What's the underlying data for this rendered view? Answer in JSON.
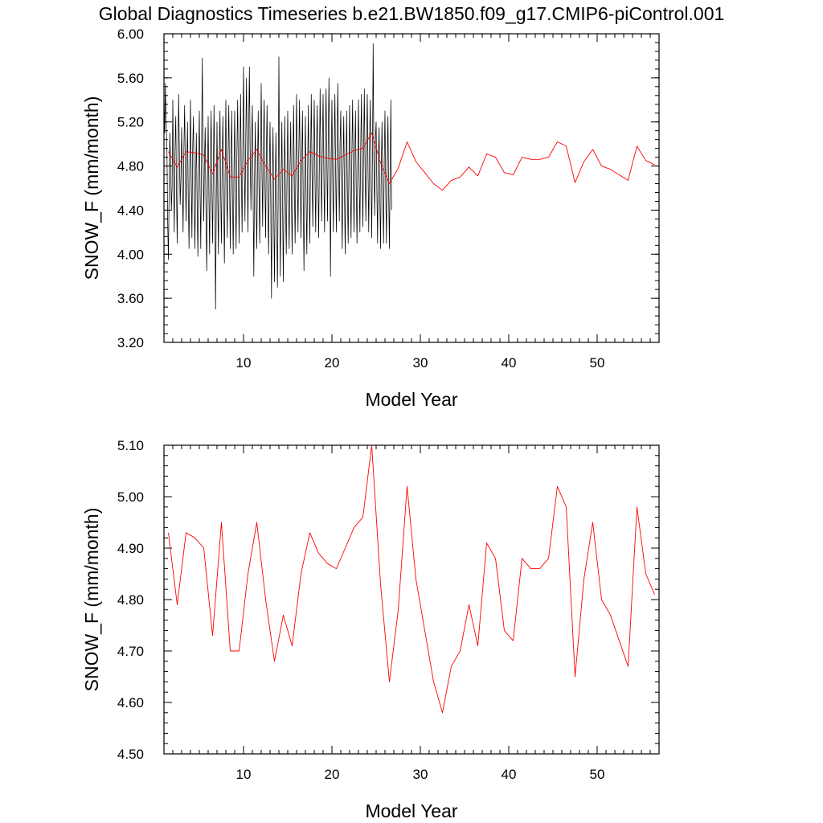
{
  "title": "Global Diagnostics Timeseries b.e21.BW1850.f09_g17.CMIP6-piControl.001",
  "colors": {
    "monthly": "#000000",
    "annual": "#ff0000",
    "axis": "#000000"
  },
  "chart_data": [
    {
      "type": "line",
      "name": "monthly-and-annual",
      "xlabel": "Model Year",
      "ylabel": "SNOW_F (mm/month)",
      "xlim": [
        1,
        57
      ],
      "ylim": [
        3.2,
        6.0
      ],
      "xticks": [
        10,
        20,
        30,
        40,
        50
      ],
      "xtick_labels": [
        "10",
        "20",
        "30",
        "40",
        "50"
      ],
      "yticks": [
        3.2,
        3.6,
        4.0,
        4.4,
        4.8,
        5.2,
        5.6,
        6.0
      ],
      "ytick_labels": [
        "3.20",
        "3.60",
        "4.00",
        "4.40",
        "4.80",
        "5.20",
        "5.60",
        "6.00"
      ],
      "series": [
        {
          "name": "monthly",
          "color": "#000000",
          "x_start": 1.0,
          "x_step": 0.08333,
          "values": [
            5.45,
            5.1,
            5.55,
            5.2,
            4.95,
            4.3,
            3.95,
            4.55,
            5.1,
            4.85,
            4.4,
            4.6,
            5.4,
            4.75,
            4.2,
            4.95,
            5.25,
            4.55,
            4.1,
            4.85,
            5.45,
            4.9,
            4.45,
            4.7,
            5.15,
            4.65,
            4.2,
            4.9,
            5.35,
            4.8,
            4.3,
            4.75,
            5.2,
            4.55,
            4.05,
            4.8,
            5.4,
            4.7,
            4.15,
            4.95,
            5.25,
            4.55,
            4.05,
            4.65,
            5.1,
            4.5,
            3.98,
            4.7,
            5.3,
            4.6,
            4.05,
            4.85,
            5.78,
            4.9,
            4.3,
            4.85,
            5.15,
            4.45,
            3.85,
            4.6,
            5.25,
            4.55,
            4.0,
            4.8,
            5.3,
            4.6,
            4.1,
            4.75,
            5.35,
            4.65,
            3.5,
            4.45,
            5.2,
            4.5,
            4.0,
            4.85,
            5.3,
            4.55,
            4.1,
            4.8,
            5.25,
            4.6,
            3.92,
            4.7,
            5.4,
            4.7,
            4.15,
            4.9,
            5.35,
            4.65,
            4.05,
            4.8,
            5.3,
            4.55,
            4.0,
            4.75,
            5.3,
            4.6,
            4.05,
            4.9,
            5.4,
            4.7,
            4.1,
            4.85,
            5.45,
            4.75,
            4.2,
            4.95,
            5.7,
            4.9,
            4.3,
            5.0,
            5.6,
            4.85,
            4.2,
            5.1,
            5.7,
            4.95,
            4.4,
            5.05,
            5.35,
            4.55,
            3.8,
            4.7,
            5.2,
            4.45,
            4.05,
            4.8,
            5.3,
            4.6,
            4.1,
            4.85,
            5.55,
            4.8,
            4.25,
            5.0,
            5.4,
            4.65,
            4.15,
            4.9,
            5.35,
            4.5,
            4.0,
            4.75,
            5.2,
            4.45,
            3.6,
            4.6,
            5.15,
            4.4,
            3.75,
            4.55,
            5.1,
            4.35,
            3.7,
            4.5,
            5.79,
            4.65,
            3.8,
            4.6,
            5.2,
            4.45,
            3.75,
            4.55,
            5.25,
            4.5,
            4.0,
            4.7,
            5.3,
            4.6,
            4.05,
            4.75,
            5.2,
            4.5,
            4.0,
            4.8,
            5.35,
            4.65,
            4.1,
            4.85,
            5.45,
            4.75,
            4.2,
            4.9,
            5.4,
            4.7,
            4.15,
            4.8,
            5.3,
            4.55,
            3.85,
            4.7,
            5.25,
            4.5,
            4.0,
            4.75,
            5.35,
            4.6,
            4.1,
            4.85,
            5.45,
            4.75,
            4.25,
            4.95,
            5.4,
            4.7,
            4.2,
            4.9,
            5.35,
            4.65,
            4.15,
            4.85,
            5.5,
            4.8,
            4.3,
            5.0,
            5.45,
            4.75,
            4.2,
            4.95,
            5.5,
            4.85,
            4.3,
            5.05,
            5.6,
            4.9,
            3.8,
            4.85,
            5.4,
            4.7,
            4.2,
            4.9,
            5.45,
            4.75,
            4.2,
            4.95,
            5.55,
            4.85,
            4.3,
            5.0,
            5.3,
            4.6,
            4.05,
            4.75,
            5.25,
            4.55,
            4.0,
            4.7,
            5.3,
            4.6,
            4.1,
            4.8,
            5.35,
            4.65,
            4.15,
            4.85,
            5.4,
            4.7,
            4.2,
            4.9,
            5.3,
            4.6,
            4.1,
            4.8,
            5.4,
            4.7,
            4.2,
            4.9,
            5.45,
            4.75,
            4.25,
            4.95,
            5.5,
            4.8,
            4.3,
            5.0,
            5.45,
            4.75,
            4.2,
            4.95,
            5.4,
            4.7,
            4.15,
            4.9,
            5.91,
            4.85,
            4.35,
            5.05,
            5.2,
            4.6,
            4.1,
            4.85,
            5.15,
            4.5,
            4.05,
            4.8,
            5.2,
            4.55,
            4.1,
            4.85,
            5.3,
            4.6,
            4.1,
            4.8,
            5.25,
            4.55,
            4.05,
            4.75,
            5.4,
            4.4
          ]
        },
        {
          "name": "annual",
          "color": "#ff0000",
          "x": [
            1.5,
            2.5,
            3.5,
            4.5,
            5.5,
            6.5,
            7.5,
            8.5,
            9.5,
            10.5,
            11.5,
            12.5,
            13.5,
            14.5,
            15.5,
            16.5,
            17.5,
            18.5,
            19.5,
            20.5,
            21.5,
            22.5,
            23.5,
            24.5,
            25.5,
            26.5,
            27.5,
            28.5,
            29.5,
            30.5,
            31.5,
            32.5,
            33.5,
            34.5,
            35.5,
            36.5,
            37.5,
            38.5,
            39.5,
            40.5,
            41.5,
            42.5,
            43.5,
            44.5,
            45.5,
            46.5,
            47.5,
            48.5,
            49.5,
            50.5,
            51.5,
            52.5,
            53.5,
            54.5,
            55.5,
            56.5
          ],
          "values": [
            4.93,
            4.79,
            4.93,
            4.92,
            4.9,
            4.73,
            4.95,
            4.7,
            4.7,
            4.85,
            4.95,
            4.8,
            4.68,
            4.77,
            4.71,
            4.85,
            4.93,
            4.89,
            4.87,
            4.86,
            4.9,
            4.94,
            4.96,
            5.1,
            4.83,
            4.64,
            4.78,
            5.02,
            4.84,
            4.74,
            4.64,
            4.58,
            4.67,
            4.7,
            4.79,
            4.71,
            4.91,
            4.88,
            4.74,
            4.72,
            4.88,
            4.86,
            4.86,
            4.88,
            5.02,
            4.98,
            4.65,
            4.84,
            4.95,
            4.8,
            4.77,
            4.72,
            4.67,
            4.98,
            4.85,
            4.81
          ]
        }
      ]
    },
    {
      "type": "line",
      "name": "annual-only",
      "xlabel": "Model Year",
      "ylabel": "SNOW_F (mm/month)",
      "xlim": [
        1,
        57
      ],
      "ylim": [
        4.5,
        5.1
      ],
      "xticks": [
        10,
        20,
        30,
        40,
        50
      ],
      "xtick_labels": [
        "10",
        "20",
        "30",
        "40",
        "50"
      ],
      "yticks": [
        4.5,
        4.6,
        4.7,
        4.8,
        4.9,
        5.0,
        5.1
      ],
      "ytick_labels": [
        "4.50",
        "4.60",
        "4.70",
        "4.80",
        "4.90",
        "5.00",
        "5.10"
      ],
      "series": [
        {
          "name": "annual",
          "color": "#ff0000",
          "x": [
            1.5,
            2.5,
            3.5,
            4.5,
            5.5,
            6.5,
            7.5,
            8.5,
            9.5,
            10.5,
            11.5,
            12.5,
            13.5,
            14.5,
            15.5,
            16.5,
            17.5,
            18.5,
            19.5,
            20.5,
            21.5,
            22.5,
            23.5,
            24.5,
            25.5,
            26.5,
            27.5,
            28.5,
            29.5,
            30.5,
            31.5,
            32.5,
            33.5,
            34.5,
            35.5,
            36.5,
            37.5,
            38.5,
            39.5,
            40.5,
            41.5,
            42.5,
            43.5,
            44.5,
            45.5,
            46.5,
            47.5,
            48.5,
            49.5,
            50.5,
            51.5,
            52.5,
            53.5,
            54.5,
            55.5,
            56.5
          ],
          "values": [
            4.93,
            4.79,
            4.93,
            4.92,
            4.9,
            4.73,
            4.95,
            4.7,
            4.7,
            4.85,
            4.95,
            4.8,
            4.68,
            4.77,
            4.71,
            4.85,
            4.93,
            4.89,
            4.87,
            4.86,
            4.9,
            4.94,
            4.96,
            5.1,
            4.83,
            4.64,
            4.78,
            5.02,
            4.84,
            4.74,
            4.64,
            4.58,
            4.67,
            4.7,
            4.79,
            4.71,
            4.91,
            4.88,
            4.74,
            4.72,
            4.88,
            4.86,
            4.86,
            4.88,
            5.02,
            4.98,
            4.65,
            4.84,
            4.95,
            4.8,
            4.77,
            4.72,
            4.67,
            4.98,
            4.85,
            4.81
          ]
        }
      ]
    }
  ]
}
